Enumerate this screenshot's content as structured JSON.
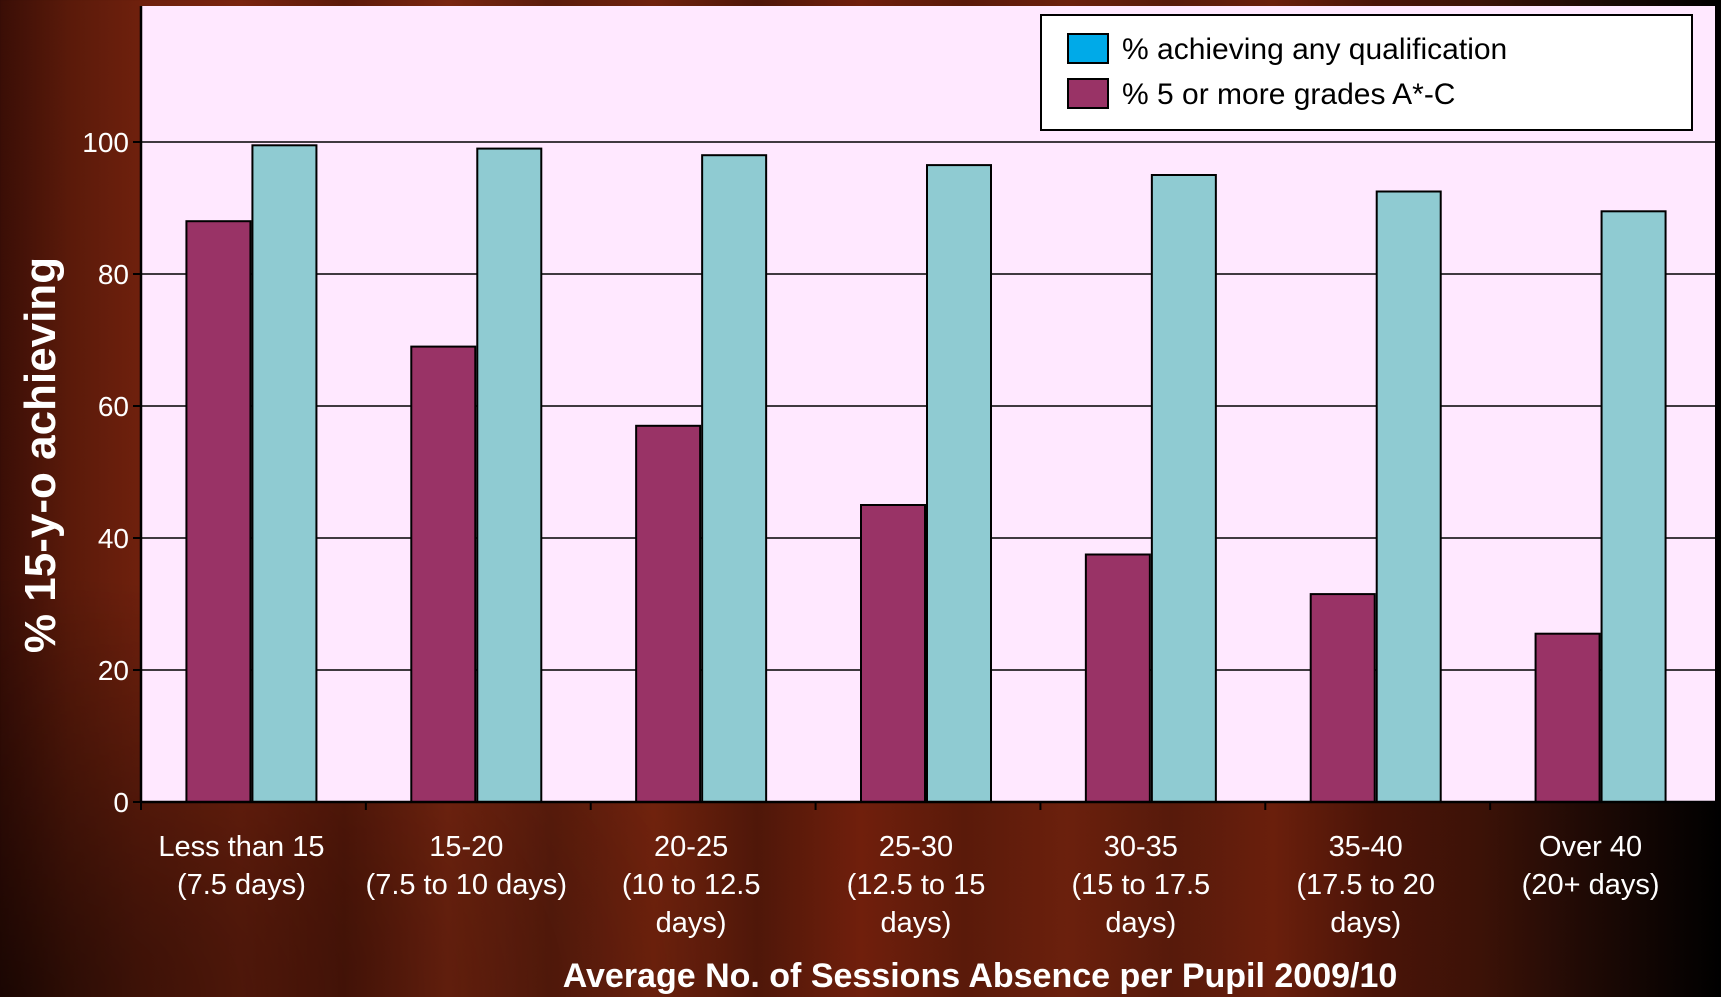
{
  "chart_data": {
    "type": "bar",
    "title": "",
    "xlabel": "Average No. of Sessions Absence per Pupil 2009/10",
    "ylabel": "% 15-y-o achieving",
    "ylim": [
      0,
      100
    ],
    "yticks": [
      "0",
      "20",
      "40",
      "60",
      "80",
      "100"
    ],
    "grid": true,
    "legend_position": "top-right",
    "categories": [
      [
        "Less than 15",
        "(7.5 days)"
      ],
      [
        "15-20",
        "(7.5 to 10 days)"
      ],
      [
        "20-25",
        "(10 to 12.5",
        "days)"
      ],
      [
        "25-30",
        "(12.5 to 15",
        "days)"
      ],
      [
        "30-35",
        "(15 to 17.5",
        "days)"
      ],
      [
        "35-40",
        "(17.5 to 20",
        "days)"
      ],
      [
        "Over 40",
        "(20+ days)"
      ]
    ],
    "series": [
      {
        "name": "% 5 or more grades A*-C",
        "color": "#993366",
        "values": [
          88,
          69,
          57,
          45,
          37.5,
          31.5,
          25.5
        ]
      },
      {
        "name": "% achieving any qualification",
        "color": "#8fcbd2",
        "legend_color": "#00aae8",
        "values": [
          99.5,
          99,
          98,
          96.5,
          95,
          92.5,
          89.5
        ]
      }
    ],
    "legend_order": [
      1,
      0
    ]
  },
  "colors": {
    "plot_background": "#ffe8ff",
    "gridline": "#000000",
    "axis": "#000000",
    "text": "#ffffff"
  }
}
